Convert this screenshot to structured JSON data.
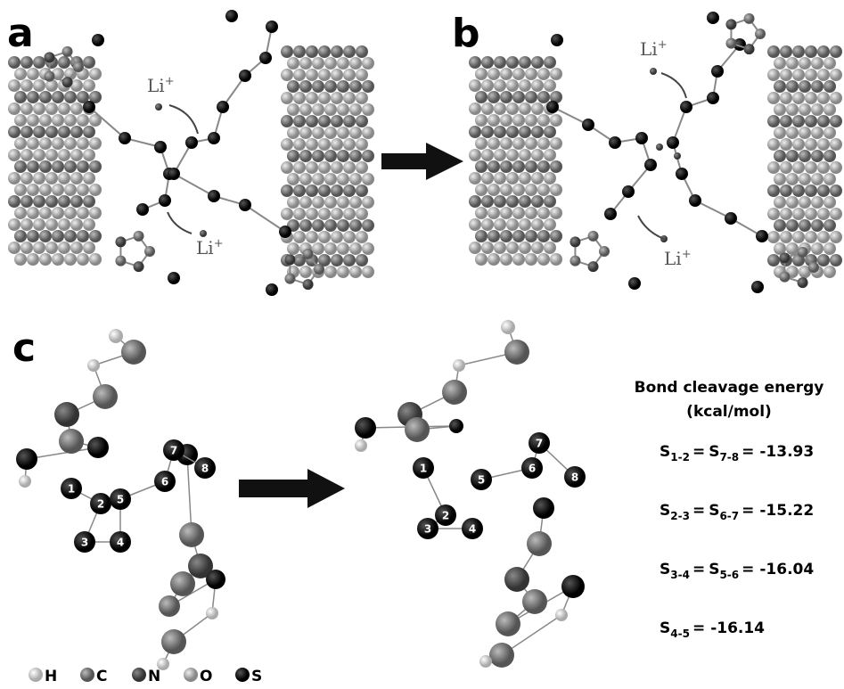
{
  "panels": [
    "a",
    "b",
    "c"
  ],
  "li": {
    "symbol": "Li",
    "charge": "+"
  },
  "atom_numbers": [
    "1",
    "2",
    "3",
    "4",
    "5",
    "6",
    "7",
    "8"
  ],
  "legend": [
    "H",
    "C",
    "N",
    "O",
    "S"
  ],
  "energy": {
    "title": "Bond cleavage energy",
    "unit": "(kcal/mol)",
    "equals": "=",
    "rows": [
      {
        "terms": [
          {
            "symbol": "S",
            "sub": "1-2"
          },
          {
            "symbol": "S",
            "sub": "7-8"
          }
        ],
        "value": "-13.93"
      },
      {
        "terms": [
          {
            "symbol": "S",
            "sub": "2-3"
          },
          {
            "symbol": "S",
            "sub": "6-7"
          }
        ],
        "value": "-15.22"
      },
      {
        "terms": [
          {
            "symbol": "S",
            "sub": "3-4"
          },
          {
            "symbol": "S",
            "sub": "5-6"
          }
        ],
        "value": "-16.04"
      },
      {
        "terms": [
          {
            "symbol": "S",
            "sub": "4-5"
          }
        ],
        "value": "-16.14"
      }
    ]
  }
}
